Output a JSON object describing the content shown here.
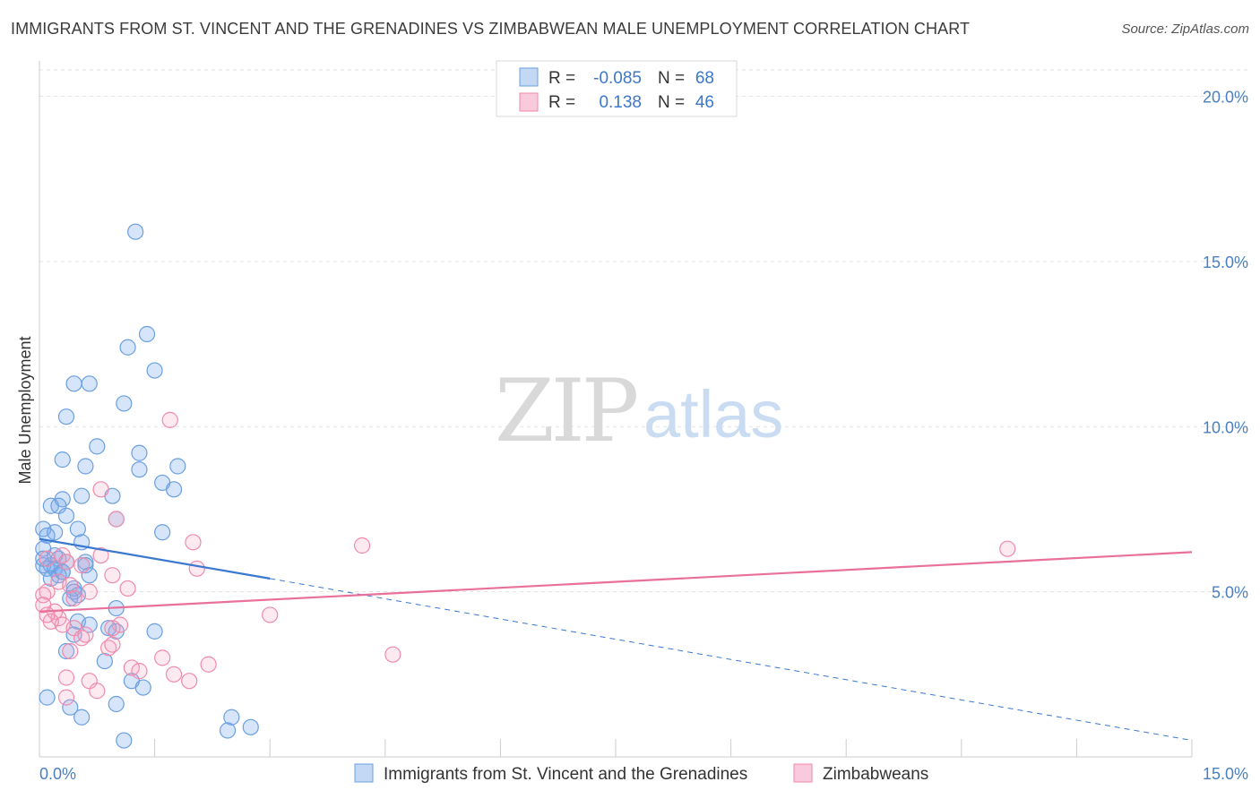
{
  "title": "IMMIGRANTS FROM ST. VINCENT AND THE GRENADINES VS ZIMBABWEAN MALE UNEMPLOYMENT CORRELATION CHART",
  "source": "Source: ZipAtlas.com",
  "watermark": {
    "zip": "ZIP",
    "atlas": "atlas"
  },
  "colors": {
    "blue": "#6a9fe0",
    "blue_line": "#3a78d0",
    "pink": "#f08aaa",
    "pink_line": "#e8709a",
    "tick": "#4a7fc1"
  },
  "legend": {
    "r_label": "R =",
    "n_label": "N =",
    "rows": [
      {
        "r": "-0.085",
        "n": "68",
        "series": "blue"
      },
      {
        "r": "0.138",
        "n": "46",
        "series": "pink"
      }
    ]
  },
  "chart_data": {
    "type": "scatter",
    "title": "IMMIGRANTS FROM ST. VINCENT AND THE GRENADINES VS ZIMBABWEAN MALE UNEMPLOYMENT CORRELATION CHART",
    "xlabel": "",
    "ylabel": "Male Unemployment",
    "xlim": [
      0,
      15
    ],
    "ylim": [
      0,
      20.8
    ],
    "x_ticks": [
      0,
      15
    ],
    "x_tick_labels": [
      "0.0%",
      "15.0%"
    ],
    "y_ticks": [
      5,
      10,
      15,
      20
    ],
    "y_tick_labels": [
      "5.0%",
      "10.0%",
      "15.0%",
      "20.0%"
    ],
    "series": [
      {
        "name": "Immigrants from St. Vincent and the Grenadines",
        "color": "blue",
        "r": -0.085,
        "n": 68,
        "trend": {
          "x0": 0,
          "y0": 6.6,
          "x1": 3.0,
          "y1": 5.4,
          "dash_to_x": 15,
          "dash_to_y": 0.5
        },
        "points": [
          [
            1.25,
            15.9
          ],
          [
            1.4,
            12.8
          ],
          [
            1.15,
            12.4
          ],
          [
            1.5,
            11.7
          ],
          [
            0.45,
            11.3
          ],
          [
            0.65,
            11.3
          ],
          [
            1.1,
            10.7
          ],
          [
            0.35,
            10.3
          ],
          [
            0.75,
            9.4
          ],
          [
            1.3,
            9.2
          ],
          [
            0.3,
            9.0
          ],
          [
            0.6,
            8.8
          ],
          [
            1.3,
            8.7
          ],
          [
            1.8,
            8.8
          ],
          [
            1.6,
            8.3
          ],
          [
            1.75,
            8.1
          ],
          [
            0.55,
            7.9
          ],
          [
            0.95,
            7.9
          ],
          [
            0.3,
            7.8
          ],
          [
            0.15,
            7.6
          ],
          [
            0.25,
            7.6
          ],
          [
            0.35,
            7.3
          ],
          [
            1.0,
            7.2
          ],
          [
            0.05,
            6.9
          ],
          [
            0.5,
            6.9
          ],
          [
            0.2,
            6.8
          ],
          [
            1.6,
            6.8
          ],
          [
            0.1,
            6.7
          ],
          [
            0.55,
            6.5
          ],
          [
            0.05,
            6.3
          ],
          [
            0.25,
            6.0
          ],
          [
            0.05,
            5.8
          ],
          [
            0.15,
            5.8
          ],
          [
            0.35,
            5.9
          ],
          [
            0.6,
            5.9
          ],
          [
            0.6,
            5.8
          ],
          [
            0.1,
            5.7
          ],
          [
            0.2,
            5.7
          ],
          [
            0.3,
            5.6
          ],
          [
            0.25,
            5.5
          ],
          [
            0.65,
            5.5
          ],
          [
            0.15,
            5.4
          ],
          [
            0.45,
            5.1
          ],
          [
            0.5,
            4.9
          ],
          [
            0.4,
            4.8
          ],
          [
            1.0,
            4.5
          ],
          [
            0.5,
            4.1
          ],
          [
            0.65,
            4.0
          ],
          [
            0.9,
            3.9
          ],
          [
            1.0,
            3.8
          ],
          [
            1.5,
            3.8
          ],
          [
            0.45,
            3.7
          ],
          [
            0.35,
            3.2
          ],
          [
            0.85,
            2.9
          ],
          [
            1.2,
            2.3
          ],
          [
            1.35,
            2.1
          ],
          [
            0.1,
            1.8
          ],
          [
            0.4,
            1.5
          ],
          [
            1.0,
            1.6
          ],
          [
            0.55,
            1.2
          ],
          [
            2.5,
            1.2
          ],
          [
            2.45,
            0.8
          ],
          [
            2.75,
            0.9
          ],
          [
            1.1,
            0.5
          ],
          [
            0.05,
            6.0
          ],
          [
            0.2,
            6.1
          ],
          [
            0.3,
            5.6
          ],
          [
            0.45,
            5.0
          ]
        ]
      },
      {
        "name": "Zimbabweans",
        "color": "pink",
        "r": 0.138,
        "n": 46,
        "trend": {
          "x0": 0,
          "y0": 4.4,
          "x1": 15,
          "y1": 6.2
        },
        "points": [
          [
            1.7,
            10.2
          ],
          [
            0.8,
            8.1
          ],
          [
            1.0,
            7.2
          ],
          [
            2.0,
            6.5
          ],
          [
            4.2,
            6.4
          ],
          [
            12.6,
            6.3
          ],
          [
            0.3,
            6.1
          ],
          [
            0.8,
            6.1
          ],
          [
            0.1,
            6.0
          ],
          [
            0.35,
            5.9
          ],
          [
            0.55,
            5.8
          ],
          [
            2.05,
            5.7
          ],
          [
            0.95,
            5.5
          ],
          [
            0.25,
            5.3
          ],
          [
            0.4,
            5.2
          ],
          [
            1.15,
            5.1
          ],
          [
            0.65,
            5.0
          ],
          [
            0.1,
            5.0
          ],
          [
            0.05,
            4.9
          ],
          [
            0.45,
            4.8
          ],
          [
            0.05,
            4.6
          ],
          [
            0.2,
            4.4
          ],
          [
            0.25,
            4.2
          ],
          [
            3.0,
            4.3
          ],
          [
            0.15,
            4.1
          ],
          [
            0.3,
            4.0
          ],
          [
            0.45,
            3.9
          ],
          [
            1.05,
            4.0
          ],
          [
            0.95,
            3.9
          ],
          [
            0.55,
            3.6
          ],
          [
            0.9,
            3.3
          ],
          [
            0.95,
            3.4
          ],
          [
            0.4,
            3.2
          ],
          [
            4.6,
            3.1
          ],
          [
            1.6,
            3.0
          ],
          [
            1.2,
            2.7
          ],
          [
            2.2,
            2.8
          ],
          [
            0.35,
            2.4
          ],
          [
            1.75,
            2.5
          ],
          [
            0.65,
            2.3
          ],
          [
            1.95,
            2.3
          ],
          [
            0.75,
            2.0
          ],
          [
            0.35,
            1.8
          ],
          [
            0.1,
            4.3
          ],
          [
            0.6,
            3.7
          ],
          [
            1.3,
            2.6
          ]
        ]
      }
    ]
  }
}
